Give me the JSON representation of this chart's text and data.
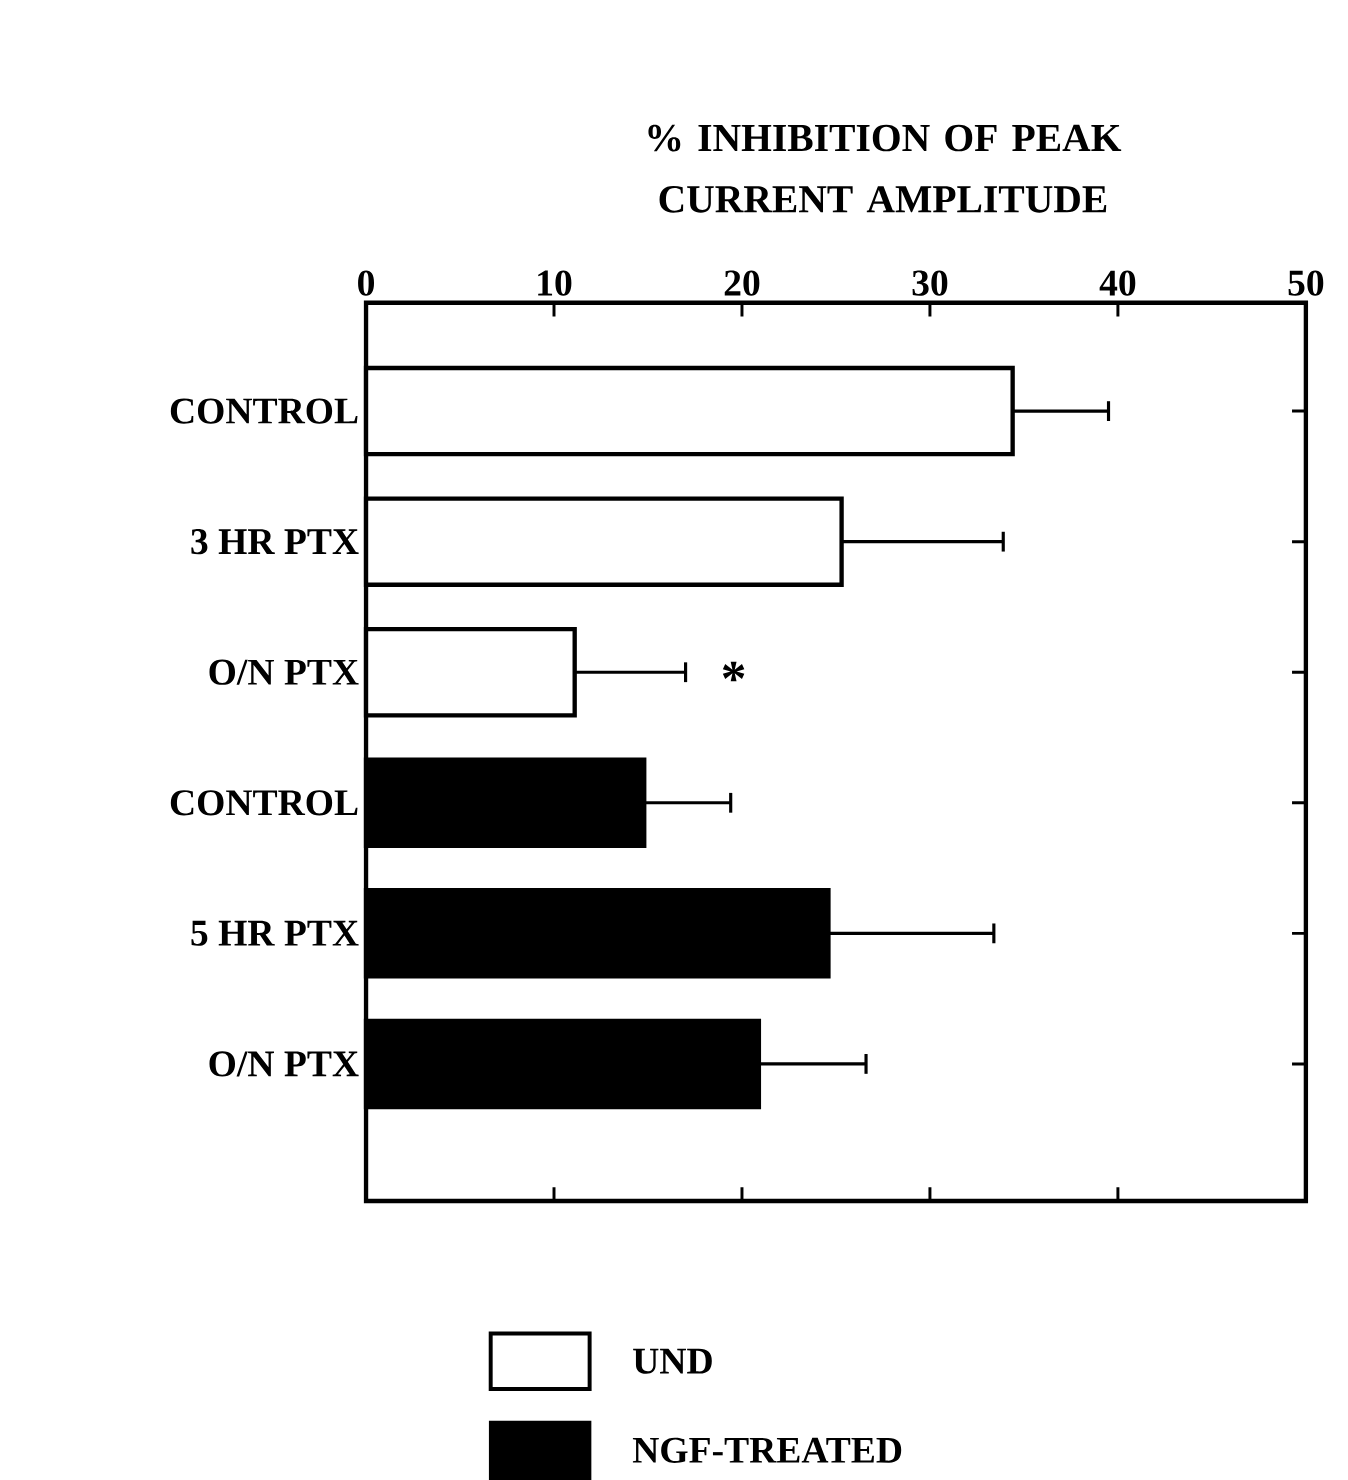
{
  "chart_data": {
    "type": "bar",
    "orientation": "horizontal",
    "xlabel": "% INHIBITION OF PEAK CURRENT AMPLITUDE",
    "categories": [
      "CONTROL",
      "3 HR PTX",
      "O/N PTX",
      "CONTROL",
      "5 HR PTX",
      "O/N PTX"
    ],
    "series": [
      {
        "name": "UND",
        "color": "#ffffff",
        "values": [
          34.4,
          25.3,
          11.1,
          null,
          null,
          null
        ],
        "errors": [
          5.1,
          8.6,
          5.9,
          null,
          null,
          null
        ]
      },
      {
        "name": "NGF-TREATED",
        "color": "#000000",
        "values": [
          null,
          null,
          null,
          14.8,
          24.6,
          20.9
        ],
        "errors": [
          null,
          null,
          null,
          4.6,
          8.8,
          5.7
        ]
      }
    ],
    "xlim": [
      0,
      50
    ],
    "xticks": [
      0,
      10,
      20,
      30,
      40,
      50
    ],
    "annotations": [
      "*"
    ],
    "legend": "bottom",
    "grid": false
  }
}
